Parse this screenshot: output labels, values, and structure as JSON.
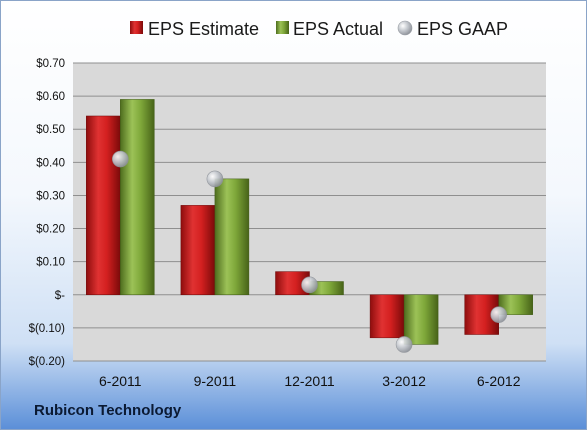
{
  "company": "Rubicon Technology",
  "colors": {
    "estimate": "#d42020",
    "actual": "#7fa83a",
    "gaap": "#b8bcc4",
    "plot_bg": "#d9d9d9"
  },
  "chart_data": {
    "type": "bar",
    "title": "",
    "xlabel": "",
    "ylabel": "",
    "categories": [
      "6-2011",
      "9-2011",
      "12-2011",
      "3-2012",
      "6-2012"
    ],
    "series": [
      {
        "name": "EPS Estimate",
        "type": "bar",
        "values": [
          0.54,
          0.27,
          0.07,
          -0.13,
          -0.12
        ]
      },
      {
        "name": "EPS Actual",
        "type": "bar",
        "values": [
          0.59,
          0.35,
          0.04,
          -0.15,
          -0.06
        ]
      },
      {
        "name": "EPS GAAP",
        "type": "scatter",
        "values": [
          0.41,
          0.35,
          0.03,
          -0.15,
          -0.06
        ]
      }
    ],
    "ylim": [
      -0.2,
      0.7
    ],
    "yticks": [
      0.7,
      0.6,
      0.5,
      0.4,
      0.3,
      0.2,
      0.1,
      0,
      -0.1,
      -0.2
    ],
    "ytick_labels": [
      "$0.70",
      "$0.60",
      "$0.50",
      "$0.40",
      "$0.30",
      "$0.20",
      "$0.10",
      "$-",
      "$(0.10)",
      "$(0.20)"
    ],
    "grid": true,
    "legend": "top"
  }
}
